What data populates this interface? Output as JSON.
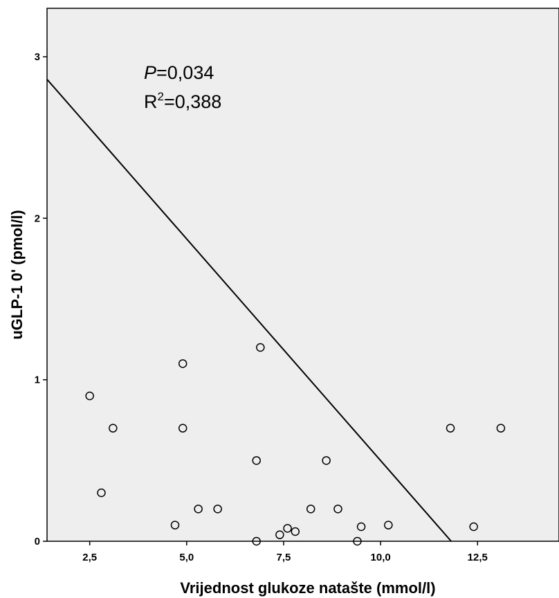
{
  "chart_data": {
    "type": "scatter",
    "xlabel": "Vrijednost glukoze natašte (mmol/l)",
    "ylabel": "uGLP-1 0' (pmol/l)",
    "xlim": [
      1.4,
      14.6
    ],
    "ylim": [
      0,
      3.3
    ],
    "x_ticks": [
      2.5,
      5.0,
      7.5,
      10.0,
      12.5
    ],
    "x_tick_labels": [
      "2,5",
      "5,0",
      "7,5",
      "10,0",
      "12,5"
    ],
    "y_ticks": [
      0,
      1,
      2,
      3
    ],
    "y_tick_labels": [
      "0",
      "1",
      "2",
      "3"
    ],
    "grid": false,
    "background_color": "#eeeeee",
    "annotation": {
      "p_symbol": "P",
      "p_value": "=0,034",
      "r_symbol": "R",
      "r_exponent": "2",
      "r_value": "=0,388"
    },
    "fit_line": {
      "x": [
        1.4,
        11.82
      ],
      "y": [
        2.86,
        0.0
      ]
    },
    "points": [
      {
        "x": 2.5,
        "y": 0.9
      },
      {
        "x": 2.8,
        "y": 0.3
      },
      {
        "x": 3.1,
        "y": 0.7
      },
      {
        "x": 4.7,
        "y": 0.1
      },
      {
        "x": 4.9,
        "y": 1.1
      },
      {
        "x": 4.9,
        "y": 0.7
      },
      {
        "x": 5.3,
        "y": 0.2
      },
      {
        "x": 5.8,
        "y": 0.2
      },
      {
        "x": 6.8,
        "y": 0.5
      },
      {
        "x": 6.8,
        "y": 0.0
      },
      {
        "x": 6.9,
        "y": 1.2
      },
      {
        "x": 7.4,
        "y": 0.04
      },
      {
        "x": 7.6,
        "y": 0.08
      },
      {
        "x": 7.8,
        "y": 0.06
      },
      {
        "x": 8.2,
        "y": 0.2
      },
      {
        "x": 8.6,
        "y": 0.5
      },
      {
        "x": 8.9,
        "y": 0.2
      },
      {
        "x": 9.4,
        "y": 0.0
      },
      {
        "x": 9.5,
        "y": 0.09
      },
      {
        "x": 10.2,
        "y": 0.1
      },
      {
        "x": 11.8,
        "y": 0.7
      },
      {
        "x": 12.4,
        "y": 0.09
      },
      {
        "x": 13.1,
        "y": 0.7
      }
    ]
  }
}
